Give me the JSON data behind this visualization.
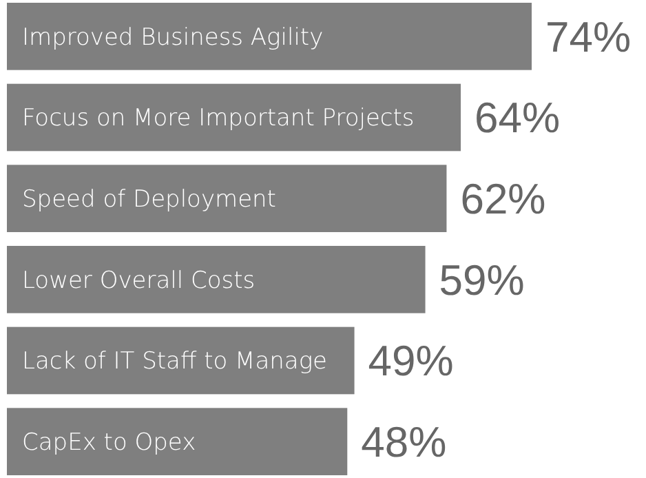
{
  "chart_data": {
    "type": "bar",
    "orientation": "horizontal",
    "data_labels": true,
    "categories": [
      "Improved Business Agility",
      "Focus on More Important Projects",
      "Speed of Deployment",
      "Lower Overall Costs",
      "Lack of IT Staff to Manage",
      "CapEx to Opex"
    ],
    "values": [
      74,
      64,
      62,
      59,
      49,
      48
    ],
    "color": "#7f7f7f",
    "value_labels": [
      "74%",
      "64%",
      "62%",
      "59%",
      "49%",
      "48%"
    ]
  }
}
